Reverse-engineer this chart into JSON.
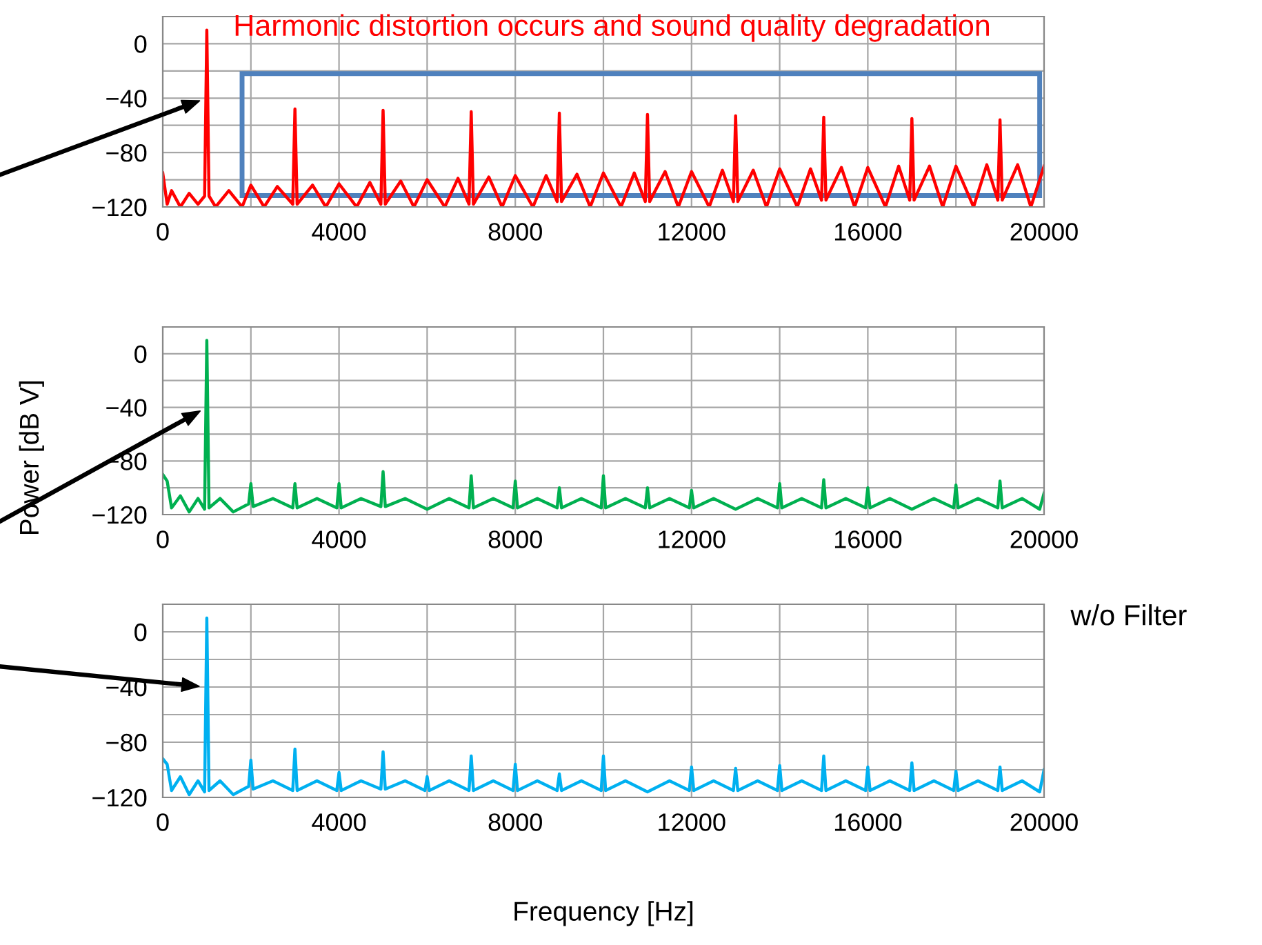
{
  "chart_data": [
    {
      "type": "line",
      "color": "#ff0000",
      "annotations": [
        "Harmonic distortion occurs and sound quality degradation"
      ],
      "x": [
        0,
        100,
        200,
        400,
        600,
        800,
        950,
        1000,
        1050,
        1200,
        1500,
        1800,
        2000,
        2300,
        2600,
        2950,
        3000,
        3050,
        3400,
        3700,
        4000,
        4400,
        4700,
        4950,
        5000,
        5050,
        5400,
        5700,
        6000,
        6400,
        6700,
        6950,
        7000,
        7050,
        7400,
        7700,
        8000,
        8400,
        8700,
        8950,
        9000,
        9050,
        9400,
        9700,
        10000,
        10400,
        10700,
        10950,
        11000,
        11050,
        11400,
        11700,
        12000,
        12400,
        12700,
        12950,
        13000,
        13050,
        13400,
        13700,
        14000,
        14400,
        14700,
        14950,
        15000,
        15050,
        15400,
        15700,
        16000,
        16400,
        16700,
        16950,
        17000,
        17050,
        17400,
        17700,
        18000,
        18400,
        18700,
        18950,
        19000,
        19050,
        19400,
        19700,
        20000
      ],
      "values": [
        -95,
        -118,
        -108,
        -120,
        -110,
        -118,
        -112,
        10,
        -112,
        -120,
        -108,
        -120,
        -104,
        -120,
        -105,
        -118,
        -48,
        -118,
        -104,
        -120,
        -103,
        -120,
        -102,
        -118,
        -49,
        -118,
        -101,
        -120,
        -100,
        -120,
        -99,
        -118,
        -50,
        -118,
        -98,
        -120,
        -97,
        -120,
        -97,
        -116,
        -51,
        -116,
        -96,
        -120,
        -95,
        -120,
        -95,
        -116,
        -52,
        -116,
        -94,
        -120,
        -94,
        -120,
        -93,
        -116,
        -53,
        -116,
        -93,
        -120,
        -92,
        -120,
        -92,
        -115,
        -54,
        -115,
        -91,
        -120,
        -91,
        -120,
        -90,
        -115,
        -55,
        -115,
        -90,
        -120,
        -90,
        -120,
        -89,
        -115,
        -56,
        -115,
        -89,
        -120,
        -90
      ],
      "xlim": [
        0,
        20000
      ],
      "xticks": [
        0,
        {
          "value": 2000,
          "label": null
        },
        4000,
        {
          "value": 6000,
          "label": null
        },
        8000,
        {
          "value": 10000,
          "label": null
        },
        12000,
        {
          "value": 14000,
          "label": null
        },
        16000,
        {
          "value": 18000,
          "label": null
        },
        20000
      ],
      "ylim": [
        -120,
        20
      ],
      "yticks": [
        -120,
        {
          "value": -100,
          "label": null
        },
        -80,
        {
          "value": -60,
          "label": null
        },
        -40,
        {
          "value": -20,
          "label": null
        },
        0,
        {
          "value": 20,
          "label": null
        }
      ],
      "grid": true
    },
    {
      "type": "line",
      "color": "#00b050",
      "ylabel": "Power [dB V]",
      "x": [
        0,
        100,
        200,
        400,
        600,
        800,
        950,
        1000,
        1050,
        1300,
        1600,
        1950,
        2000,
        2050,
        2500,
        2950,
        3000,
        3050,
        3500,
        3950,
        4000,
        4050,
        4500,
        4950,
        5000,
        5050,
        5500,
        6000,
        6500,
        6950,
        7000,
        7050,
        7500,
        7950,
        8000,
        8050,
        8500,
        8950,
        9000,
        9050,
        9500,
        9950,
        10000,
        10050,
        10500,
        10950,
        11000,
        11050,
        11500,
        11950,
        12000,
        12050,
        12500,
        13000,
        13500,
        13950,
        14000,
        14050,
        14500,
        14950,
        15000,
        15050,
        15500,
        15950,
        16000,
        16050,
        16500,
        17000,
        17500,
        17950,
        18000,
        18050,
        18500,
        18950,
        19000,
        19050,
        19500,
        19900,
        20000
      ],
      "values": [
        -90,
        -95,
        -115,
        -106,
        -118,
        -108,
        -116,
        10,
        -115,
        -108,
        -118,
        -112,
        -97,
        -114,
        -108,
        -115,
        -97,
        -115,
        -108,
        -115,
        -97,
        -115,
        -108,
        -114,
        -88,
        -114,
        -108,
        -116,
        -108,
        -115,
        -91,
        -115,
        -108,
        -115,
        -95,
        -115,
        -108,
        -115,
        -100,
        -115,
        -108,
        -115,
        -91,
        -115,
        -108,
        -115,
        -100,
        -115,
        -108,
        -115,
        -102,
        -115,
        -108,
        -116,
        -108,
        -115,
        -97,
        -115,
        -108,
        -115,
        -94,
        -115,
        -108,
        -115,
        -100,
        -115,
        -108,
        -116,
        -108,
        -115,
        -98,
        -115,
        -108,
        -115,
        -95,
        -115,
        -108,
        -116,
        -104
      ],
      "xlim": [
        0,
        20000
      ],
      "xticks": [
        0,
        {
          "value": 2000,
          "label": null
        },
        4000,
        {
          "value": 6000,
          "label": null
        },
        8000,
        {
          "value": 10000,
          "label": null
        },
        12000,
        {
          "value": 14000,
          "label": null
        },
        16000,
        {
          "value": 18000,
          "label": null
        },
        20000
      ],
      "ylim": [
        -120,
        20
      ],
      "yticks": [
        -120,
        {
          "value": -100,
          "label": null
        },
        -80,
        {
          "value": -60,
          "label": null
        },
        -40,
        {
          "value": -20,
          "label": null
        },
        0,
        {
          "value": 20,
          "label": null
        }
      ],
      "grid": true
    },
    {
      "type": "line",
      "color": "#00b0f0",
      "xlabel": "Frequency [Hz]",
      "annotations": [
        "w/o Filter"
      ],
      "x": [
        0,
        100,
        200,
        400,
        600,
        800,
        950,
        1000,
        1050,
        1300,
        1600,
        1950,
        2000,
        2050,
        2500,
        2950,
        3000,
        3050,
        3500,
        3950,
        4000,
        4050,
        4500,
        4950,
        5000,
        5050,
        5500,
        5950,
        6000,
        6050,
        6500,
        6950,
        7000,
        7050,
        7500,
        7950,
        8000,
        8050,
        8500,
        8950,
        9000,
        9050,
        9500,
        9950,
        10000,
        10050,
        10500,
        11000,
        11500,
        11950,
        12000,
        12050,
        12500,
        12950,
        13000,
        13050,
        13500,
        13950,
        14000,
        14050,
        14500,
        14950,
        15000,
        15050,
        15500,
        15950,
        16000,
        16050,
        16500,
        16950,
        17000,
        17050,
        17500,
        17950,
        18000,
        18050,
        18500,
        18950,
        19000,
        19050,
        19500,
        19900,
        20000
      ],
      "values": [
        -92,
        -96,
        -115,
        -105,
        -118,
        -108,
        -116,
        10,
        -115,
        -108,
        -118,
        -112,
        -93,
        -114,
        -108,
        -115,
        -85,
        -115,
        -108,
        -115,
        -102,
        -115,
        -108,
        -114,
        -87,
        -114,
        -108,
        -115,
        -105,
        -115,
        -108,
        -115,
        -90,
        -115,
        -108,
        -115,
        -96,
        -115,
        -108,
        -115,
        -103,
        -115,
        -108,
        -115,
        -90,
        -115,
        -108,
        -116,
        -108,
        -115,
        -98,
        -115,
        -108,
        -115,
        -99,
        -115,
        -108,
        -115,
        -97,
        -115,
        -108,
        -115,
        -90,
        -115,
        -108,
        -115,
        -98,
        -115,
        -108,
        -115,
        -95,
        -115,
        -108,
        -115,
        -101,
        -115,
        -108,
        -115,
        -98,
        -115,
        -108,
        -116,
        -100
      ],
      "xlim": [
        0,
        20000
      ],
      "xticks": [
        0,
        {
          "value": 2000,
          "label": null
        },
        4000,
        {
          "value": 6000,
          "label": null
        },
        8000,
        {
          "value": 10000,
          "label": null
        },
        12000,
        {
          "value": 14000,
          "label": null
        },
        16000,
        {
          "value": 18000,
          "label": null
        },
        20000
      ],
      "ylim": [
        -120,
        20
      ],
      "yticks": [
        -120,
        {
          "value": -100,
          "label": null
        },
        -80,
        {
          "value": -60,
          "label": null
        },
        -40,
        {
          "value": -20,
          "label": null
        },
        0,
        {
          "value": 20,
          "label": null
        }
      ],
      "grid": true
    }
  ]
}
